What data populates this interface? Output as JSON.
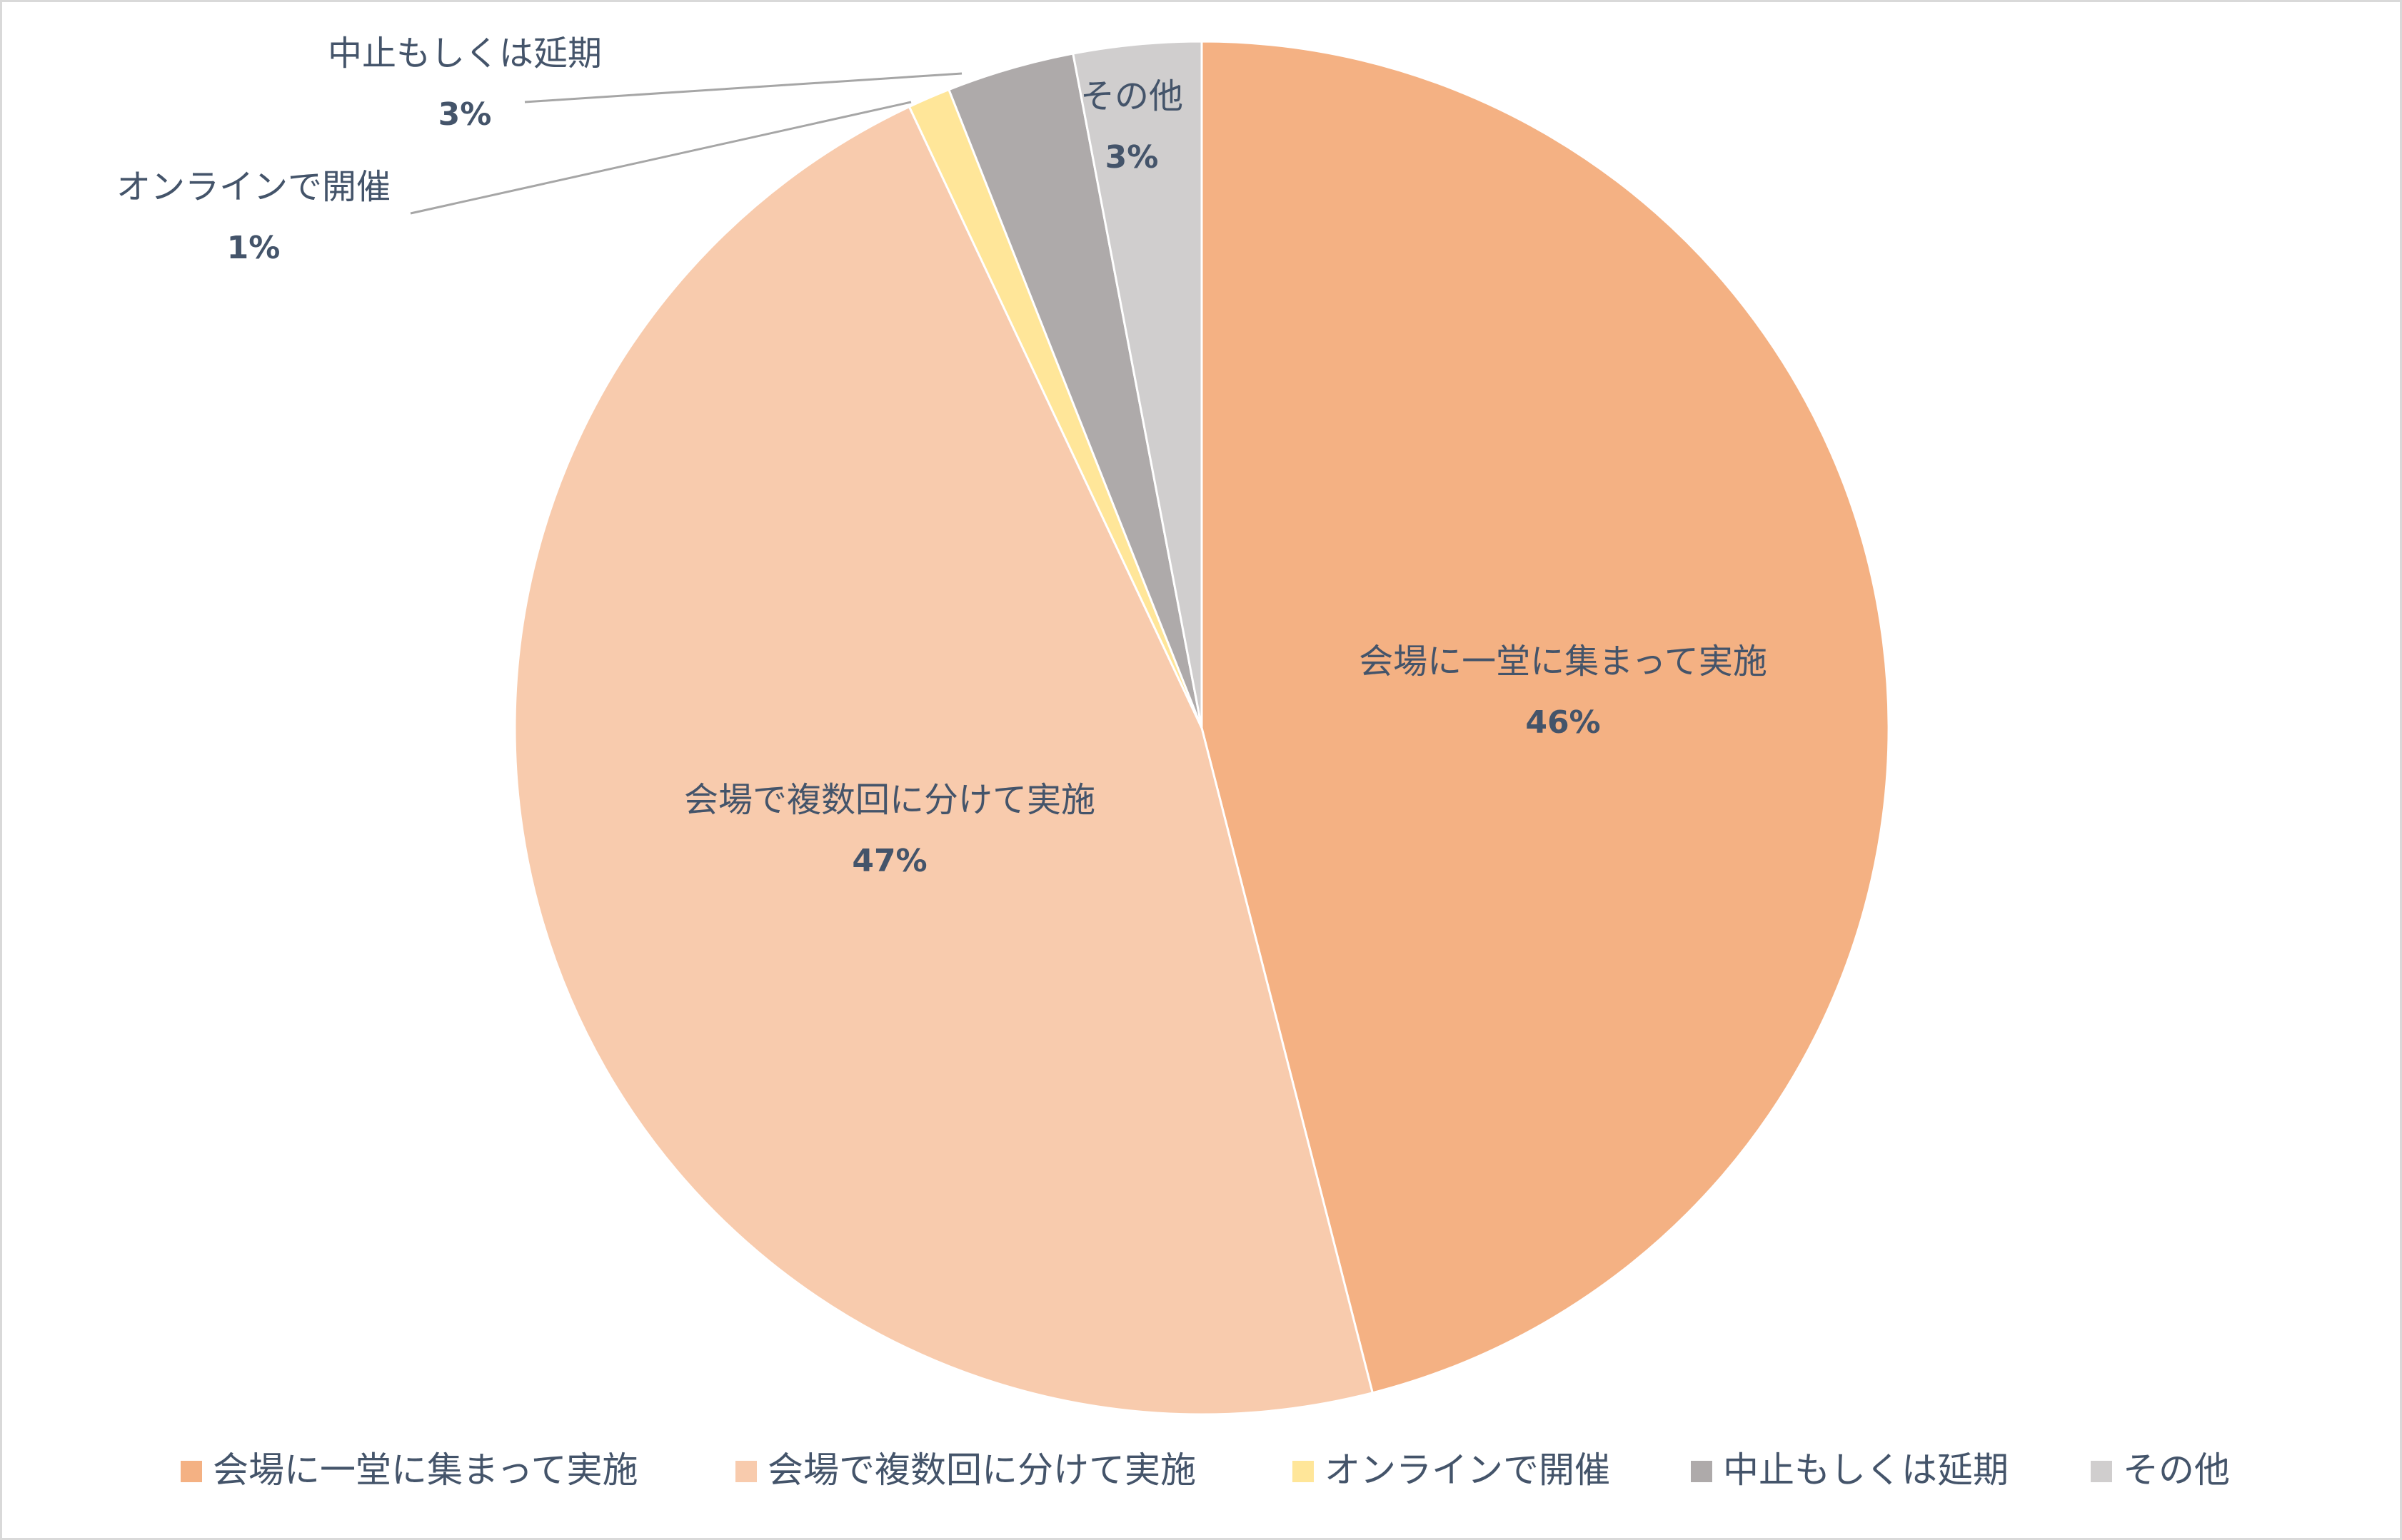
{
  "chart_data": {
    "type": "pie",
    "title": "",
    "slices": [
      {
        "label": "会場に一堂に集まって実施",
        "value": 46,
        "value_label": "46%",
        "color": "#F4B183"
      },
      {
        "label": "会場で複数回に分けて実施",
        "value": 47,
        "value_label": "47%",
        "color": "#F8CBAD"
      },
      {
        "label": "オンラインで開催",
        "value": 1,
        "value_label": "1%",
        "color": "#FFE699"
      },
      {
        "label": "中止もしくは延期",
        "value": 3,
        "value_label": "3%",
        "color": "#AEAAAA"
      },
      {
        "label": "その他",
        "value": 3,
        "value_label": "3%",
        "color": "#D0CECE"
      }
    ],
    "start": "12 o'clock",
    "direction": "clockwise",
    "legend": {
      "position": "bottom"
    },
    "label_color": "#44546A",
    "leader_line_color": "#A6A6A6"
  }
}
